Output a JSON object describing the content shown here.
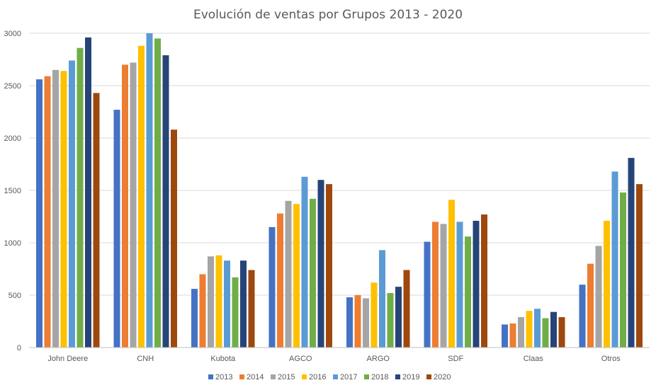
{
  "chart_data": {
    "type": "bar",
    "title": "Evolución de ventas por Grupos 2013 - 2020",
    "xlabel": "",
    "ylabel": "",
    "ylim": [
      0,
      3000
    ],
    "yticks": [
      "0",
      "500",
      "1000",
      "1500",
      "2000",
      "2500",
      "3000"
    ],
    "ytick_values": [
      0,
      500,
      1000,
      1500,
      2000,
      2500,
      3000
    ],
    "grid": true,
    "legend_position": "bottom",
    "categories": [
      "John Deere",
      "CNH",
      "Kubota",
      "AGCO",
      "ARGO",
      "SDF",
      "Claas",
      "Otros"
    ],
    "series": [
      {
        "name": "2013",
        "color": "#4472C4",
        "values": [
          2560,
          2270,
          560,
          1150,
          480,
          1010,
          220,
          600
        ]
      },
      {
        "name": "2014",
        "color": "#ED7D31",
        "values": [
          2590,
          2700,
          700,
          1280,
          500,
          1200,
          230,
          800
        ]
      },
      {
        "name": "2015",
        "color": "#A5A5A5",
        "values": [
          2650,
          2720,
          870,
          1400,
          470,
          1180,
          290,
          970
        ]
      },
      {
        "name": "2016",
        "color": "#FFC000",
        "values": [
          2640,
          2880,
          880,
          1370,
          620,
          1410,
          350,
          1210
        ]
      },
      {
        "name": "2017",
        "color": "#5B9BD5",
        "values": [
          2740,
          3000,
          830,
          1630,
          930,
          1200,
          370,
          1680
        ]
      },
      {
        "name": "2018",
        "color": "#70AD47",
        "values": [
          2860,
          2950,
          670,
          1420,
          520,
          1060,
          280,
          1480
        ]
      },
      {
        "name": "2019",
        "color": "#264478",
        "values": [
          2960,
          2790,
          830,
          1600,
          580,
          1210,
          340,
          1810
        ]
      },
      {
        "name": "2020",
        "color": "#9E480E",
        "values": [
          2430,
          2080,
          740,
          1560,
          740,
          1270,
          290,
          1560
        ]
      }
    ]
  }
}
